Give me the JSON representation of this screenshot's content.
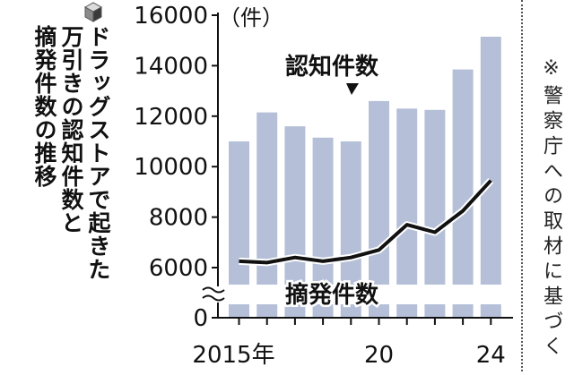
{
  "chart_data": {
    "type": "bar",
    "title_lines": [
      "ドラッグストアで起きた",
      "万引きの認知件数と",
      "摘発件数の推移"
    ],
    "title_icon": "cube-icon",
    "y_unit": "（件）",
    "note": "※警察庁への取材に基づく",
    "x_tick_labels": [
      "2015年",
      "20",
      "24"
    ],
    "y_ticks": [
      0,
      6000,
      8000,
      10000,
      12000,
      14000,
      16000
    ],
    "y_tick_labels": [
      "0",
      "6000",
      "8000",
      "10000",
      "12000",
      "14000",
      "16000"
    ],
    "axis_break": true,
    "categories": [
      "2015",
      "2016",
      "2017",
      "2018",
      "2019",
      "2020",
      "2021",
      "2022",
      "2023",
      "2024"
    ],
    "series": [
      {
        "name": "認知件数",
        "kind": "bar",
        "values": [
          11000,
          12150,
          11600,
          11150,
          11000,
          12600,
          12300,
          12250,
          13850,
          15150
        ],
        "color": "#b5c0d8"
      },
      {
        "name": "摘発件数",
        "kind": "line",
        "values": [
          6250,
          6200,
          6400,
          6250,
          6400,
          6700,
          7700,
          7400,
          8250,
          9450
        ],
        "color": "#111111"
      }
    ]
  }
}
